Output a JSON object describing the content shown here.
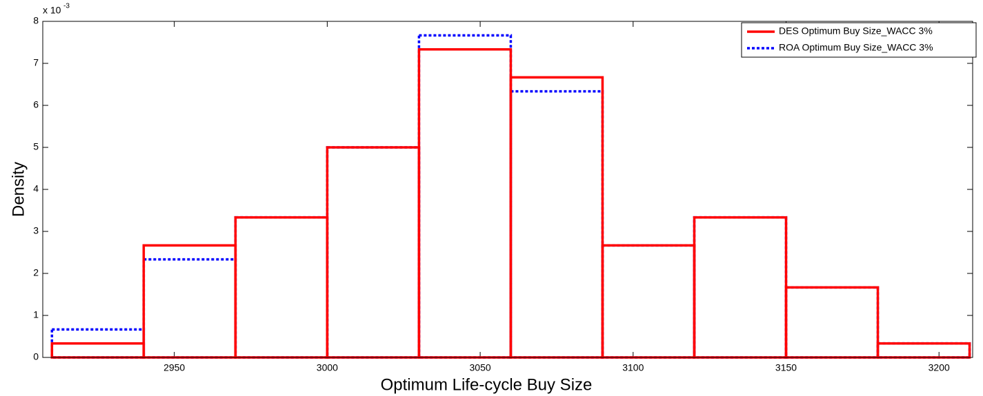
{
  "chart_data": {
    "type": "histogram",
    "xlabel": "Optimum Life-cycle Buy Size",
    "ylabel": "Density",
    "y_multiplier_base": "x 10",
    "y_multiplier_exponent": "-3",
    "bins": [
      2910,
      2940,
      2970,
      3000,
      3030,
      3060,
      3090,
      3120,
      3150,
      3180,
      3210
    ],
    "series": [
      {
        "name": "DES Optimum Buy Size_WACC 3%",
        "color": "#ff0000",
        "style": "solid",
        "values": [
          0.333,
          2.667,
          3.333,
          5.0,
          7.333,
          6.667,
          2.667,
          3.333,
          1.667,
          0.333
        ]
      },
      {
        "name": "ROA Optimum Buy Size_WACC 3%",
        "color": "#0000ff",
        "style": "dotted",
        "values": [
          0.667,
          2.333,
          3.333,
          5.0,
          7.667,
          6.333,
          2.667,
          3.333,
          1.667,
          0.333
        ]
      }
    ],
    "xlim": [
      2907,
      3211
    ],
    "ylim": [
      0,
      8
    ],
    "xticks": [
      2950,
      3000,
      3050,
      3100,
      3150,
      3200
    ],
    "yticks": [
      0,
      1,
      2,
      3,
      4,
      5,
      6,
      7,
      8
    ],
    "legend": "upper right"
  }
}
